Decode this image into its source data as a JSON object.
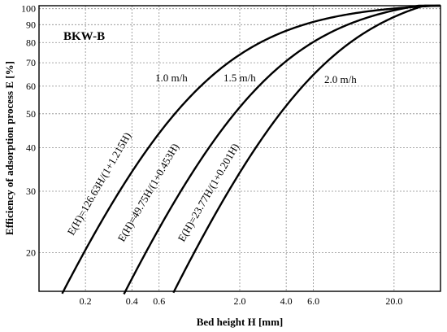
{
  "chart_data": {
    "type": "line",
    "title": "BKW-B",
    "xlabel": "Bed height H [mm]",
    "ylabel": "Efficiency of adsorption process E [%]",
    "x_scale": "log",
    "y_scale": "log",
    "xlim": [
      0.1,
      40
    ],
    "ylim": [
      15.5,
      102
    ],
    "grid": true,
    "x_ticks": [
      0.2,
      0.4,
      0.6,
      2.0,
      4.0,
      6.0,
      20.0
    ],
    "x_tick_labels": [
      "0.2",
      "0.4",
      "0.6",
      "2.0",
      "4.0",
      "6.0",
      "20.0"
    ],
    "y_ticks": [
      20,
      30,
      40,
      50,
      60,
      70,
      80,
      90,
      100
    ],
    "y_tick_labels": [
      "20",
      "30",
      "40",
      "50",
      "60",
      "70",
      "80",
      "90",
      "100"
    ],
    "series": [
      {
        "name": "1.0 m/h",
        "formula": "E(H)=126.63H/(1+1.215H)",
        "a": 126.63,
        "b": 1.215,
        "x": [
          0.13,
          0.2,
          0.4,
          0.6,
          1.0,
          2.0,
          4.0,
          6.0,
          10.0,
          20.0,
          40.0
        ],
        "values": [
          15.5,
          20.4,
          34.3,
          44.1,
          57.2,
          73.6,
          86.3,
          91.5,
          95.8,
          99.1,
          101.0
        ]
      },
      {
        "name": "1.5 m/h",
        "formula": "E(H)=49.75H/(1+0.453H)",
        "a": 49.75,
        "b": 0.453,
        "x": [
          0.36,
          0.4,
          0.6,
          1.0,
          2.0,
          4.0,
          6.0,
          10.0,
          20.0,
          40.0
        ],
        "values": [
          15.5,
          16.7,
          23.4,
          34.2,
          52.2,
          70.6,
          81.0,
          90.0,
          99.0,
          105.0
        ]
      },
      {
        "name": "2.0 m/h",
        "formula": "E(H)=23.77H/(1+0.201H)",
        "a": 23.77,
        "b": 0.201,
        "x": [
          0.76,
          1.0,
          2.0,
          4.0,
          6.0,
          10.0,
          20.0,
          40.0
        ],
        "values": [
          15.5,
          19.8,
          33.9,
          52.7,
          64.7,
          79.1,
          95.0,
          105.0
        ]
      }
    ]
  }
}
